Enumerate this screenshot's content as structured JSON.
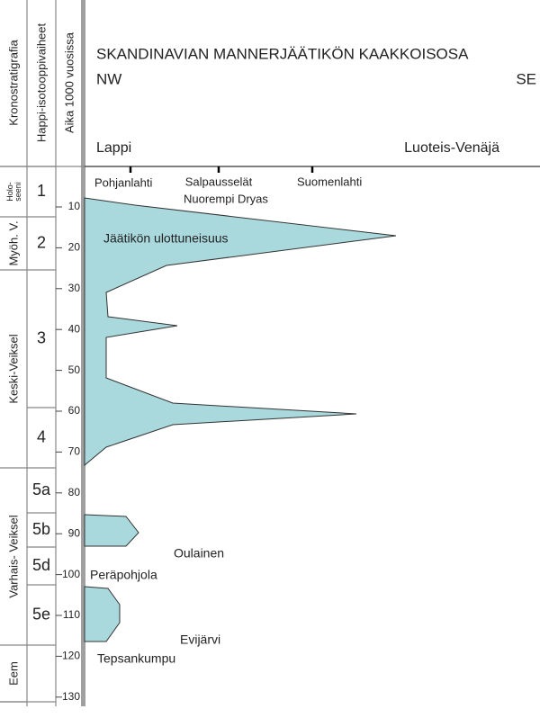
{
  "headers": {
    "chronostratigraphy": "Kronostratigrafia",
    "isotope_stages": "Happi-isotooppivaiheet",
    "age_axis": "Aika 1000 vuosissa"
  },
  "title": "SKANDINAVIAN MANNERJÄÄTIKÖN KAAKKOISOSA",
  "direction": {
    "left": "NW",
    "right": "SE"
  },
  "regions": {
    "left": "Lappi",
    "right": "Luoteis-Venäjä"
  },
  "places": [
    "Pohjanlahti",
    "Salpausselät",
    "Nuorempi Dryas",
    "Suomenlahti"
  ],
  "glacier_label": "Jäätikön ulottuneisuus",
  "chronozones": [
    [
      "Holo-",
      "seeni"
    ],
    [
      "Myöh. V."
    ],
    [
      "Keski-Veiksel"
    ],
    [
      "Varhais- Veiksel"
    ],
    [
      "Eem"
    ]
  ],
  "stages": [
    "1",
    "2",
    "3",
    "4",
    "5a",
    "5b",
    "5d",
    "5e"
  ],
  "age_ticks": [
    10,
    20,
    30,
    40,
    50,
    60,
    70,
    80,
    90,
    100,
    110,
    120,
    130
  ],
  "sites": [
    "Oulainen",
    "Peräpohjola",
    "Evijärvi",
    "Tepsankumpu"
  ]
}
